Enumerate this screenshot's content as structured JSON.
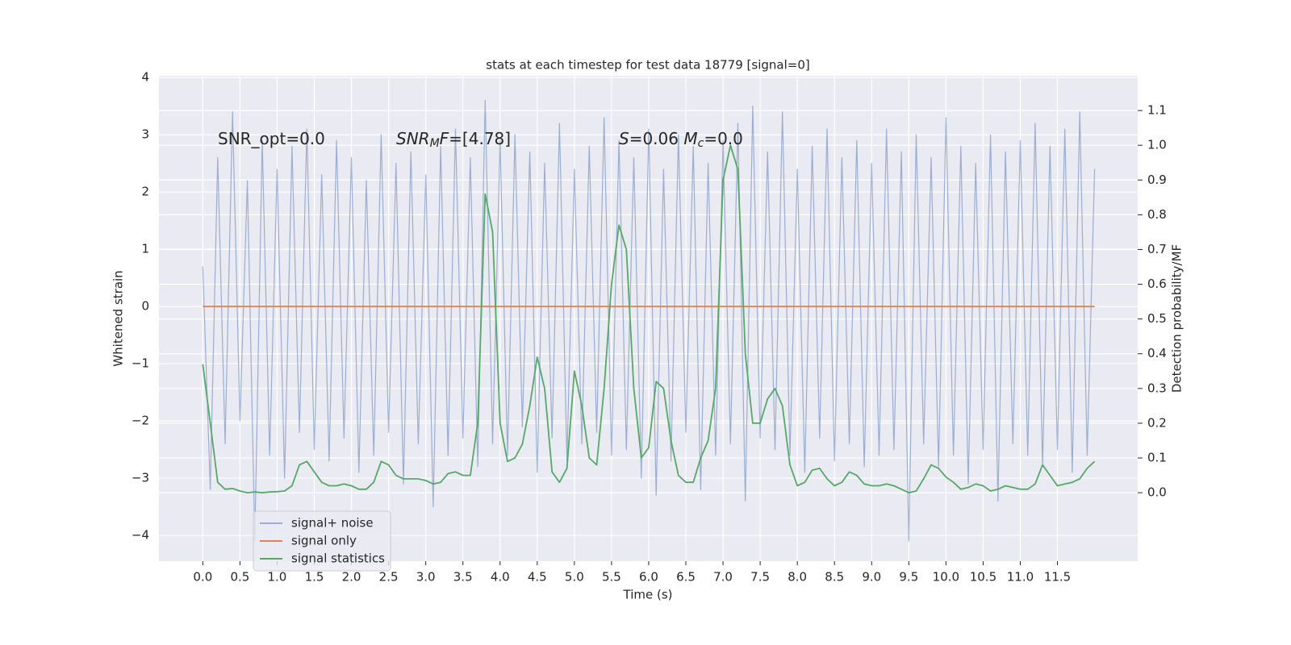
{
  "chart_data": {
    "type": "line",
    "title": "stats at each timestep for test data 18779 [signal=0]",
    "xlabel": "Time (s)",
    "ylabel": "Whitened strain",
    "y2label": "Detection probability/MF",
    "annotations": [
      [
        {
          "text": "SNR_opt=0.0",
          "style": "plain"
        }
      ],
      [
        {
          "text": "SNR",
          "style": "italic"
        },
        {
          "text": "M",
          "style": "sub"
        },
        {
          "text": "F",
          "style": "italic"
        },
        {
          "text": "=[4.78]",
          "style": "plain"
        }
      ],
      [
        {
          "text": "S",
          "style": "italic"
        },
        {
          "text": "=0.06   ",
          "style": "plain"
        },
        {
          "text": "M",
          "style": "italic"
        },
        {
          "text": "c",
          "style": "sub"
        },
        {
          "text": "=0.0",
          "style": "plain"
        }
      ]
    ],
    "x": [
      0,
      0.1,
      0.2,
      0.3,
      0.4,
      0.5,
      0.6,
      0.7,
      0.8,
      0.9,
      1.0,
      1.1,
      1.2,
      1.3,
      1.4,
      1.5,
      1.6,
      1.7,
      1.8,
      1.9,
      2.0,
      2.1,
      2.2,
      2.3,
      2.4,
      2.5,
      2.6,
      2.7,
      2.8,
      2.9,
      3.0,
      3.1,
      3.2,
      3.3,
      3.4,
      3.5,
      3.6,
      3.7,
      3.8,
      3.9,
      4.0,
      4.1,
      4.2,
      4.3,
      4.4,
      4.5,
      4.6,
      4.7,
      4.8,
      4.9,
      5.0,
      5.1,
      5.2,
      5.3,
      5.4,
      5.5,
      5.6,
      5.7,
      5.8,
      5.9,
      6.0,
      6.1,
      6.2,
      6.3,
      6.4,
      6.5,
      6.6,
      6.7,
      6.8,
      6.9,
      7.0,
      7.1,
      7.2,
      7.3,
      7.4,
      7.5,
      7.6,
      7.7,
      7.8,
      7.9,
      8.0,
      8.1,
      8.2,
      8.3,
      8.4,
      8.5,
      8.6,
      8.7,
      8.8,
      8.9,
      9.0,
      9.1,
      9.2,
      9.3,
      9.4,
      9.5,
      9.6,
      9.7,
      9.8,
      9.9,
      10.0,
      10.1,
      10.2,
      10.3,
      10.4,
      10.5,
      10.6,
      10.7,
      10.8,
      10.9,
      11.0,
      11.1,
      11.2,
      11.3,
      11.4,
      11.5,
      11.6,
      11.7,
      11.8,
      11.9,
      12.0
    ],
    "series": [
      {
        "name": "signal+ noise",
        "color": "#4c72b0",
        "opacity": 0.5,
        "axis": "y",
        "values": [
          0.7,
          -3.2,
          2.6,
          -2.4,
          3.4,
          -2.0,
          2.2,
          -4.1,
          2.9,
          -2.6,
          2.4,
          -3.0,
          2.8,
          -2.2,
          3.1,
          -2.5,
          2.3,
          -2.7,
          2.9,
          -2.3,
          2.6,
          -2.9,
          2.2,
          -2.6,
          3.0,
          -2.2,
          2.5,
          -3.1,
          2.7,
          -2.4,
          2.3,
          -3.5,
          2.8,
          -2.6,
          3.1,
          -2.3,
          2.6,
          -2.8,
          3.6,
          -2.4,
          2.9,
          -2.6,
          3.0,
          -2.1,
          2.7,
          -2.9,
          2.5,
          -2.3,
          3.2,
          -2.7,
          2.4,
          -2.4,
          2.8,
          -2.2,
          3.3,
          -2.6,
          2.9,
          -2.5,
          2.6,
          -3.0,
          3.1,
          -3.3,
          2.4,
          -2.7,
          3.0,
          -2.2,
          2.8,
          -3.2,
          2.5,
          -2.6,
          2.9,
          -2.4,
          3.2,
          -3.4,
          3.5,
          -2.3,
          2.7,
          -2.5,
          3.4,
          -2.6,
          2.4,
          -2.9,
          2.8,
          -2.3,
          3.1,
          -2.7,
          2.6,
          -2.4,
          2.9,
          -2.8,
          2.5,
          -2.6,
          3.1,
          -2.5,
          2.7,
          -4.1,
          3.0,
          -2.4,
          2.6,
          -2.8,
          3.3,
          -2.6,
          2.8,
          -3.1,
          2.5,
          -2.5,
          3.0,
          -3.4,
          2.7,
          -2.4,
          2.9,
          -2.6,
          3.2,
          -2.8,
          2.8,
          -2.5,
          3.1,
          -2.9,
          3.4,
          -2.6,
          2.4
        ]
      },
      {
        "name": "signal only",
        "color": "#dd8452",
        "opacity": 1,
        "axis": "y",
        "values": [
          0,
          0,
          0,
          0,
          0,
          0,
          0,
          0,
          0,
          0,
          0,
          0,
          0,
          0,
          0,
          0,
          0,
          0,
          0,
          0,
          0,
          0,
          0,
          0,
          0,
          0,
          0,
          0,
          0,
          0,
          0,
          0,
          0,
          0,
          0,
          0,
          0,
          0,
          0,
          0,
          0,
          0,
          0,
          0,
          0,
          0,
          0,
          0,
          0,
          0,
          0,
          0,
          0,
          0,
          0,
          0,
          0,
          0,
          0,
          0,
          0,
          0,
          0,
          0,
          0,
          0,
          0,
          0,
          0,
          0,
          0,
          0,
          0,
          0,
          0,
          0,
          0,
          0,
          0,
          0,
          0,
          0,
          0,
          0,
          0,
          0,
          0,
          0,
          0,
          0,
          0,
          0,
          0,
          0,
          0,
          0,
          0,
          0,
          0,
          0,
          0,
          0,
          0,
          0,
          0,
          0,
          0,
          0,
          0,
          0,
          0,
          0,
          0,
          0,
          0,
          0,
          0,
          0,
          0,
          0,
          0
        ]
      },
      {
        "name": "signal statistics",
        "color": "#55a868",
        "opacity": 1,
        "axis": "y2",
        "values": [
          0.37,
          0.2,
          0.03,
          0.01,
          0.012,
          0.005,
          0.0,
          0.002,
          0.0,
          0.002,
          0.003,
          0.005,
          0.02,
          0.08,
          0.09,
          0.06,
          0.03,
          0.02,
          0.02,
          0.025,
          0.02,
          0.01,
          0.01,
          0.03,
          0.09,
          0.08,
          0.05,
          0.04,
          0.04,
          0.04,
          0.035,
          0.025,
          0.03,
          0.055,
          0.06,
          0.05,
          0.05,
          0.2,
          0.86,
          0.75,
          0.2,
          0.09,
          0.1,
          0.14,
          0.25,
          0.39,
          0.3,
          0.06,
          0.03,
          0.07,
          0.35,
          0.25,
          0.1,
          0.08,
          0.3,
          0.6,
          0.77,
          0.7,
          0.3,
          0.1,
          0.13,
          0.32,
          0.3,
          0.15,
          0.05,
          0.03,
          0.03,
          0.1,
          0.15,
          0.3,
          0.9,
          1.0,
          0.93,
          0.4,
          0.2,
          0.2,
          0.27,
          0.3,
          0.25,
          0.08,
          0.02,
          0.03,
          0.065,
          0.07,
          0.04,
          0.02,
          0.03,
          0.06,
          0.05,
          0.025,
          0.02,
          0.02,
          0.025,
          0.02,
          0.01,
          0.0,
          0.005,
          0.04,
          0.08,
          0.07,
          0.045,
          0.03,
          0.01,
          0.015,
          0.025,
          0.02,
          0.005,
          0.01,
          0.02,
          0.015,
          0.01,
          0.01,
          0.025,
          0.08,
          0.05,
          0.02,
          0.025,
          0.03,
          0.04,
          0.07,
          0.09
        ]
      }
    ],
    "xlim": [
      -0.59,
      12.58
    ],
    "ylim": [
      -4.45,
      4.03
    ],
    "y2lim": [
      -0.197,
      1.2
    ],
    "xticks": [
      {
        "value": 0,
        "label": "0.0"
      },
      0.5,
      {
        "value": 1,
        "label": "1.0"
      },
      1.5,
      {
        "value": 2,
        "label": "2.0"
      },
      2.5,
      {
        "value": 3,
        "label": "3.0"
      },
      3.5,
      {
        "value": 4,
        "label": "4.0"
      },
      4.5,
      {
        "value": 5,
        "label": "5.0"
      },
      5.5,
      {
        "value": 6,
        "label": "6.0"
      },
      6.5,
      {
        "value": 7,
        "label": "7.0"
      },
      7.5,
      {
        "value": 8,
        "label": "8.0"
      },
      8.5,
      {
        "value": 9,
        "label": "9.0"
      },
      9.5,
      {
        "value": 10,
        "label": "10.0"
      },
      10.5,
      {
        "value": 11,
        "label": "11.0"
      },
      11.5
    ],
    "yticks": [
      {
        "value": -4,
        "label": "−4"
      },
      {
        "value": -3,
        "label": "−3"
      },
      {
        "value": -2,
        "label": "−2"
      },
      {
        "value": -1,
        "label": "−1"
      },
      0,
      1,
      2,
      3,
      4
    ],
    "y2ticks": [
      {
        "value": 0,
        "label": "0.0"
      },
      0.1,
      0.2,
      0.3,
      0.4,
      0.5,
      0.6,
      0.7,
      0.8,
      0.9,
      {
        "value": 1,
        "label": "1.0"
      },
      1.1
    ],
    "grid": true,
    "legend": "lower left"
  }
}
